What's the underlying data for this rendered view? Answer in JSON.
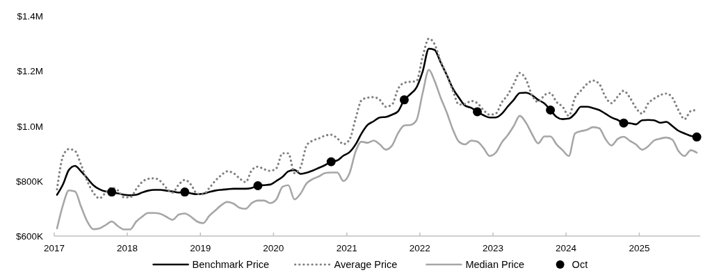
{
  "chart_data": {
    "type": "line",
    "legend": "bottom",
    "grid": false,
    "xlim": [
      "2017-01-01",
      "2025-11-01"
    ],
    "xticks": [
      "2017",
      "2018",
      "2019",
      "2020",
      "2021",
      "2022",
      "2023",
      "2024",
      "2025"
    ],
    "x": [
      "2017-01-15",
      "2017-02-15",
      "2017-03-15",
      "2017-04-15",
      "2017-05-15",
      "2017-06-15",
      "2017-07-15",
      "2017-08-15",
      "2017-09-15",
      "2017-10-15",
      "2017-11-15",
      "2017-12-15",
      "2018-01-15",
      "2018-02-15",
      "2018-03-15",
      "2018-04-15",
      "2018-05-15",
      "2018-06-15",
      "2018-07-15",
      "2018-08-15",
      "2018-09-15",
      "2018-10-15",
      "2018-11-15",
      "2018-12-15",
      "2019-01-15",
      "2019-02-15",
      "2019-03-15",
      "2019-04-15",
      "2019-05-15",
      "2019-06-15",
      "2019-07-15",
      "2019-08-15",
      "2019-09-15",
      "2019-10-15",
      "2019-11-15",
      "2019-12-15",
      "2020-01-15",
      "2020-02-15",
      "2020-03-15",
      "2020-04-15",
      "2020-05-15",
      "2020-06-15",
      "2020-07-15",
      "2020-08-15",
      "2020-09-15",
      "2020-10-15",
      "2020-11-15",
      "2020-12-15",
      "2021-01-15",
      "2021-02-15",
      "2021-03-15",
      "2021-04-15",
      "2021-05-15",
      "2021-06-15",
      "2021-07-15",
      "2021-08-15",
      "2021-09-15",
      "2021-10-15",
      "2021-11-15",
      "2021-12-15",
      "2022-01-15",
      "2022-02-15",
      "2022-03-15",
      "2022-04-15",
      "2022-05-15",
      "2022-06-15",
      "2022-07-15",
      "2022-08-15",
      "2022-09-15",
      "2022-10-15",
      "2022-11-15",
      "2022-12-15",
      "2023-01-15",
      "2023-02-15",
      "2023-03-15",
      "2023-04-15",
      "2023-05-15",
      "2023-06-15",
      "2023-07-15",
      "2023-08-15",
      "2023-09-15",
      "2023-10-15",
      "2023-11-15",
      "2023-12-15",
      "2024-01-15",
      "2024-02-15",
      "2024-03-15",
      "2024-04-15",
      "2024-05-15",
      "2024-06-15",
      "2024-07-15",
      "2024-08-15",
      "2024-09-15",
      "2024-10-15",
      "2024-11-15",
      "2024-12-15",
      "2025-01-15",
      "2025-02-15",
      "2025-03-15",
      "2025-04-15",
      "2025-05-15",
      "2025-06-15",
      "2025-07-15",
      "2025-08-15",
      "2025-09-15",
      "2025-10-15"
    ],
    "ylim": [
      600000,
      1400000
    ],
    "yticks": [
      {
        "value": 600000,
        "label": "$600K"
      },
      {
        "value": 800000,
        "label": "$800K"
      },
      {
        "value": 1000000,
        "label": "$1.0M"
      },
      {
        "value": 1200000,
        "label": "$1.2M"
      },
      {
        "value": 1400000,
        "label": "$1.4M"
      }
    ],
    "series": [
      {
        "name": "Benchmark Price",
        "color": "#000000",
        "line_style": "solid",
        "values": [
          750000,
          790000,
          840000,
          855000,
          835000,
          810000,
          785000,
          770000,
          762000,
          760000,
          755000,
          750000,
          748000,
          750000,
          758000,
          765000,
          768000,
          768000,
          765000,
          762000,
          758000,
          760000,
          755000,
          752000,
          754000,
          760000,
          765000,
          768000,
          770000,
          772000,
          772000,
          772000,
          775000,
          783000,
          785000,
          787000,
          800000,
          815000,
          835000,
          840000,
          826000,
          830000,
          838000,
          848000,
          858000,
          870000,
          875000,
          892000,
          905000,
          934000,
          972000,
          1004000,
          1017000,
          1031000,
          1033000,
          1041000,
          1054000,
          1095000,
          1116000,
          1140000,
          1198000,
          1281000,
          1277000,
          1231000,
          1186000,
          1136000,
          1103000,
          1074000,
          1066000,
          1052000,
          1039000,
          1031000,
          1031000,
          1045000,
          1070000,
          1095000,
          1120000,
          1121000,
          1112000,
          1095000,
          1082000,
          1058000,
          1033000,
          1025000,
          1027000,
          1045000,
          1070000,
          1070000,
          1065000,
          1058000,
          1045000,
          1031000,
          1022000,
          1011000,
          1010000,
          1006000,
          1021000,
          1022000,
          1021000,
          1012000,
          1015000,
          1000000,
          983000,
          973000,
          964000,
          960000
        ]
      },
      {
        "name": "Average Price",
        "color": "#808080",
        "line_style": "dotted",
        "values": [
          770000,
          893000,
          916000,
          909000,
          859000,
          800000,
          758000,
          737000,
          758000,
          775000,
          766000,
          741000,
          741000,
          771000,
          796000,
          808000,
          810000,
          800000,
          775000,
          758000,
          787000,
          804000,
          787000,
          754000,
          752000,
          775000,
          800000,
          821000,
          835000,
          829000,
          810000,
          796000,
          840000,
          852000,
          843000,
          837000,
          846000,
          901000,
          901000,
          829000,
          850000,
          930000,
          947000,
          955000,
          965000,
          968000,
          955000,
          934000,
          951000,
          1029000,
          1093000,
          1103000,
          1105000,
          1095000,
          1070000,
          1078000,
          1136000,
          1157000,
          1161000,
          1163000,
          1252000,
          1318000,
          1298000,
          1236000,
          1186000,
          1128000,
          1078000,
          1080000,
          1091000,
          1083000,
          1058000,
          1041000,
          1045000,
          1087000,
          1112000,
          1153000,
          1193000,
          1169000,
          1112000,
          1087000,
          1112000,
          1120000,
          1087000,
          1070000,
          1037000,
          1103000,
          1128000,
          1153000,
          1165000,
          1153000,
          1107000,
          1083000,
          1107000,
          1128000,
          1103000,
          1066000,
          1045000,
          1083000,
          1099000,
          1112000,
          1118000,
          1103000,
          1058000,
          1025000,
          1054000,
          1058000
        ]
      },
      {
        "name": "Median Price",
        "color": "#a6a6a6",
        "line_style": "solid",
        "values": [
          628000,
          716000,
          766000,
          762000,
          707000,
          653000,
          625000,
          628000,
          640000,
          653000,
          636000,
          624000,
          624000,
          653000,
          670000,
          684000,
          684000,
          681000,
          670000,
          659000,
          678000,
          682000,
          670000,
          653000,
          647000,
          674000,
          692000,
          712000,
          724000,
          718000,
          703000,
          699000,
          720000,
          729000,
          729000,
          720000,
          733000,
          779000,
          785000,
          733000,
          754000,
          792000,
          807000,
          817000,
          829000,
          831000,
          831000,
          800000,
          829000,
          909000,
          943000,
          939000,
          947000,
          933000,
          914000,
          929000,
          975000,
          1002000,
          1004000,
          1021000,
          1120000,
          1204000,
          1165000,
          1103000,
          1050000,
          987000,
          943000,
          933000,
          947000,
          943000,
          920000,
          891000,
          903000,
          941000,
          966000,
          1000000,
          1037000,
          1012000,
          971000,
          937000,
          962000,
          962000,
          933000,
          912000,
          891000,
          973000,
          981000,
          986000,
          996000,
          992000,
          954000,
          929000,
          953000,
          961000,
          946000,
          933000,
          914000,
          927000,
          947000,
          954000,
          958000,
          950000,
          910000,
          891000,
          912000,
          903000
        ]
      },
      {
        "name": "Oct",
        "type": "scatter",
        "color": "#000000",
        "marker": "circle",
        "x": [
          "2017-10-15",
          "2018-10-15",
          "2019-10-15",
          "2020-10-15",
          "2021-10-15",
          "2022-10-15",
          "2023-10-15",
          "2024-10-15",
          "2025-10-15"
        ],
        "values": [
          760000,
          760000,
          783000,
          870000,
          1095000,
          1052000,
          1058000,
          1011000,
          960000
        ]
      }
    ]
  }
}
